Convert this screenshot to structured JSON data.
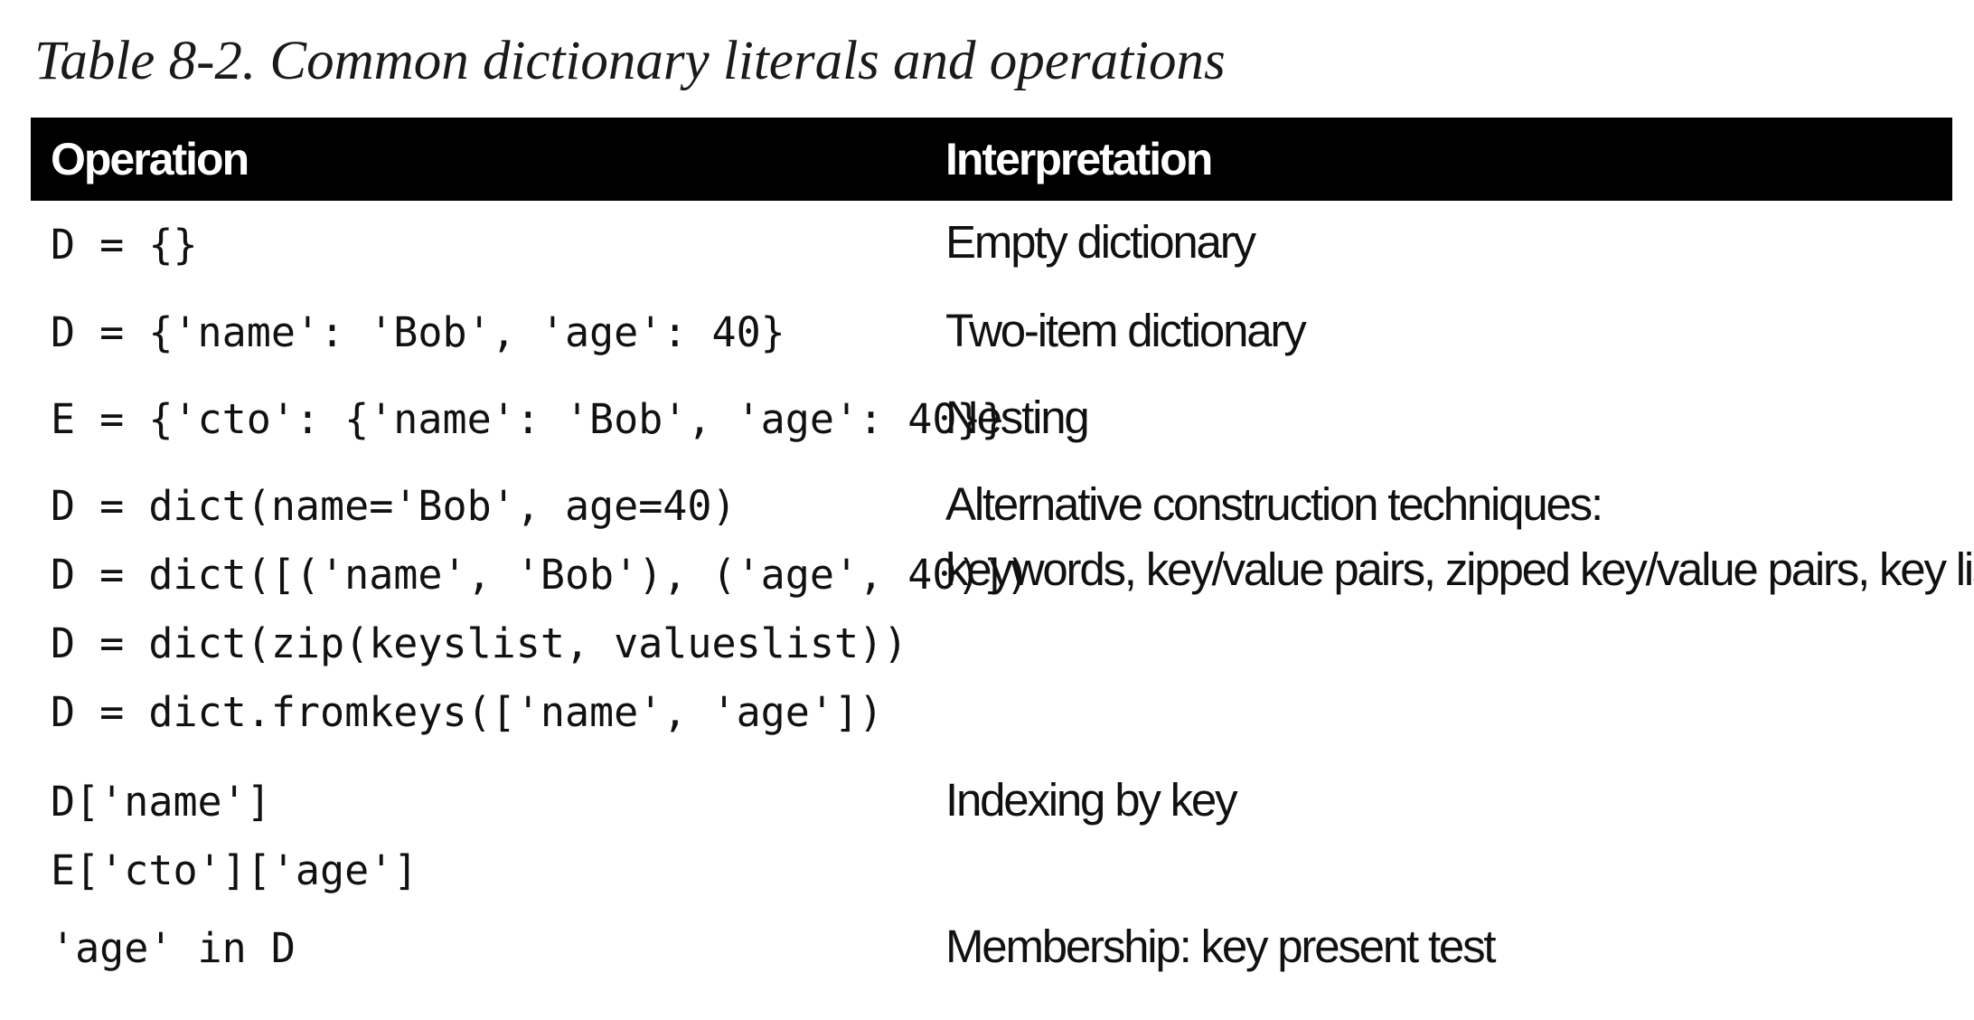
{
  "caption": "Table 8-2. Common dictionary literals and operations",
  "table": {
    "headers": {
      "operation": "Operation",
      "interpretation": "Interpretation"
    },
    "rows": [
      {
        "operation": [
          "D = {}"
        ],
        "interpretation": [
          "Empty dictionary"
        ]
      },
      {
        "operation": [
          "D = {'name': 'Bob', 'age': 40}"
        ],
        "interpretation": [
          "Two-item dictionary"
        ]
      },
      {
        "operation": [
          "E = {'cto': {'name': 'Bob', 'age': 40}}"
        ],
        "interpretation": [
          "Nesting"
        ]
      },
      {
        "operation": [
          "D = dict(name='Bob', age=40)",
          "D = dict([('name', 'Bob'), ('age', 40)])",
          "D = dict(zip(keyslist, valueslist))",
          "D = dict.fromkeys(['name', 'age'])"
        ],
        "interpretation": [
          "Alternative construction techniques:",
          "keywords, key/value pairs, zipped key/value pairs, key lists"
        ]
      },
      {
        "operation": [
          "D['name']",
          "E['cto']['age']"
        ],
        "interpretation": [
          "Indexing by key"
        ]
      },
      {
        "operation": [
          "'age' in D"
        ],
        "interpretation": [
          "Membership: key present test"
        ]
      }
    ]
  }
}
